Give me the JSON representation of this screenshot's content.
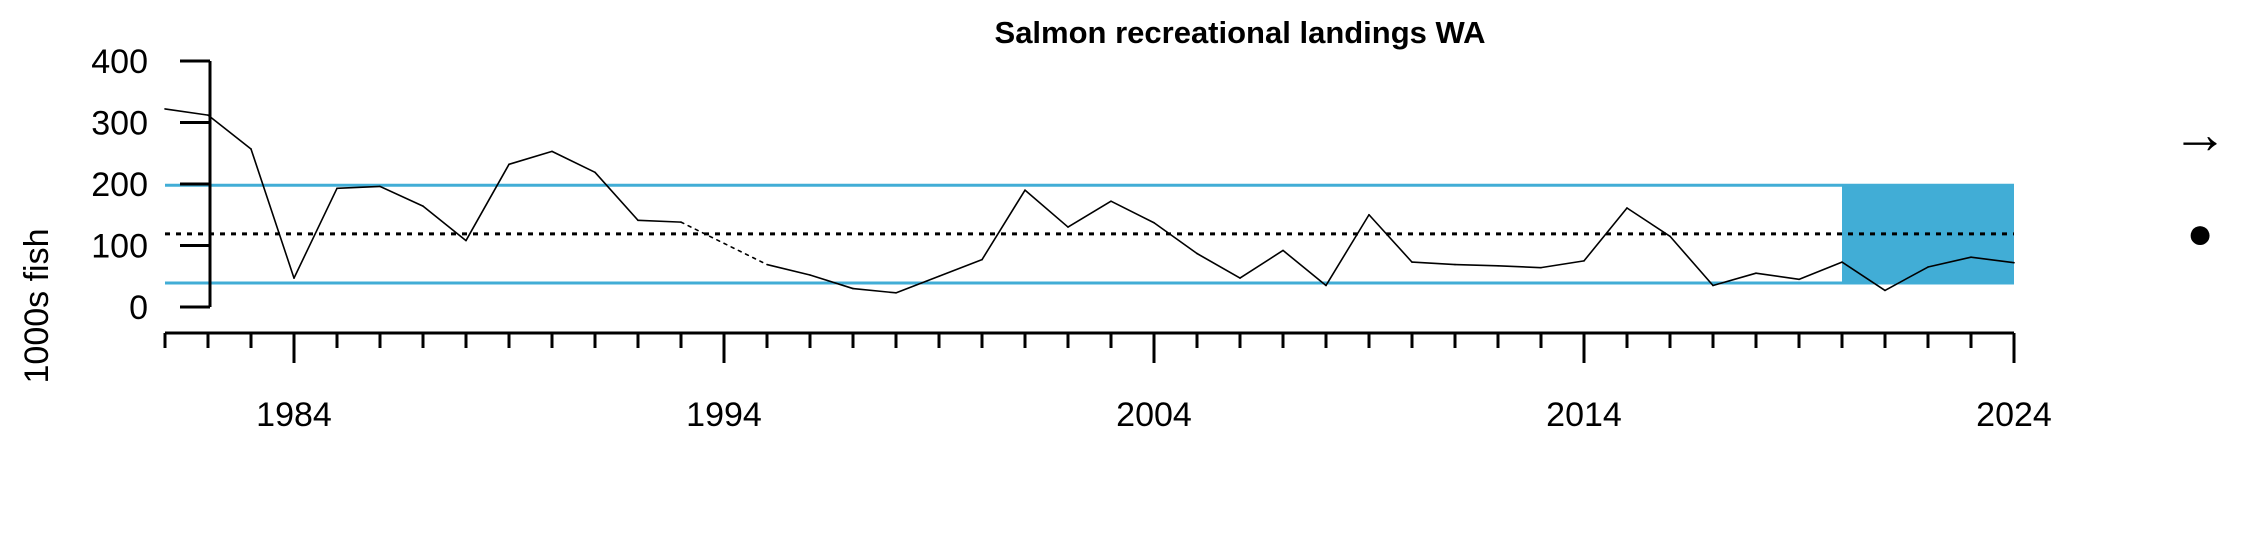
{
  "chart_data": {
    "type": "line",
    "title": "Salmon recreational landings WA",
    "xlabel": "",
    "ylabel": "1000s fish",
    "xlim": [
      1980,
      2024
    ],
    "ylim": [
      0,
      400
    ],
    "y_ticks": [
      0,
      100,
      200,
      300,
      400
    ],
    "x_ticks": [
      1984,
      1994,
      2004,
      2014,
      2024
    ],
    "series": [
      {
        "values": [
          {
            "x": 1981,
            "y": 322
          },
          {
            "x": 1982,
            "y": 312
          },
          {
            "x": 1983,
            "y": 257
          },
          {
            "x": 1984,
            "y": 47
          },
          {
            "x": 1985,
            "y": 193
          },
          {
            "x": 1986,
            "y": 196
          },
          {
            "x": 1987,
            "y": 164
          },
          {
            "x": 1988,
            "y": 108
          },
          {
            "x": 1989,
            "y": 232
          },
          {
            "x": 1990,
            "y": 253
          },
          {
            "x": 1991,
            "y": 219
          },
          {
            "x": 1992,
            "y": 141
          },
          {
            "x": 1993,
            "y": 138
          },
          {
            "x": 1995,
            "y": 69
          },
          {
            "x": 1996,
            "y": 52
          },
          {
            "x": 1997,
            "y": 30
          },
          {
            "x": 1998,
            "y": 23
          },
          {
            "x": 1999,
            "y": 50
          },
          {
            "x": 2000,
            "y": 77
          },
          {
            "x": 2001,
            "y": 190
          },
          {
            "x": 2002,
            "y": 130
          },
          {
            "x": 2003,
            "y": 172
          },
          {
            "x": 2004,
            "y": 137
          },
          {
            "x": 2005,
            "y": 87
          },
          {
            "x": 2006,
            "y": 47
          },
          {
            "x": 2007,
            "y": 92
          },
          {
            "x": 2008,
            "y": 35
          },
          {
            "x": 2009,
            "y": 150
          },
          {
            "x": 2010,
            "y": 73
          },
          {
            "x": 2011,
            "y": 69
          },
          {
            "x": 2012,
            "y": 67
          },
          {
            "x": 2013,
            "y": 64
          },
          {
            "x": 2014,
            "y": 75
          },
          {
            "x": 2015,
            "y": 161
          },
          {
            "x": 2016,
            "y": 115
          },
          {
            "x": 2017,
            "y": 35
          },
          {
            "x": 2018,
            "y": 55
          },
          {
            "x": 2019,
            "y": 45
          },
          {
            "x": 2020,
            "y": 73
          },
          {
            "x": 2021,
            "y": 27
          },
          {
            "x": 2022,
            "y": 65
          },
          {
            "x": 2023,
            "y": 81
          },
          {
            "x": 2024,
            "y": 72
          }
        ]
      }
    ],
    "reference_lines": {
      "mean": 119,
      "upper_sd": 198,
      "lower_sd": 39
    },
    "highlight_period": [
      2020,
      2024
    ],
    "trend_indicator": "→",
    "status_indicator": "●",
    "colors": {
      "line": "#000000",
      "band": "#41ADD6",
      "mean_line": "#000000"
    },
    "grid": false,
    "legend": "none"
  }
}
